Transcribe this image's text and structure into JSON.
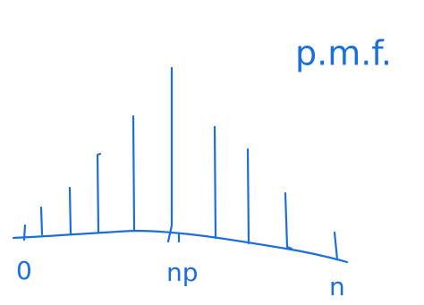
{
  "title": "p.m.f.",
  "axis_labels": {
    "start": "0",
    "middle": "np",
    "end": "n"
  }
}
